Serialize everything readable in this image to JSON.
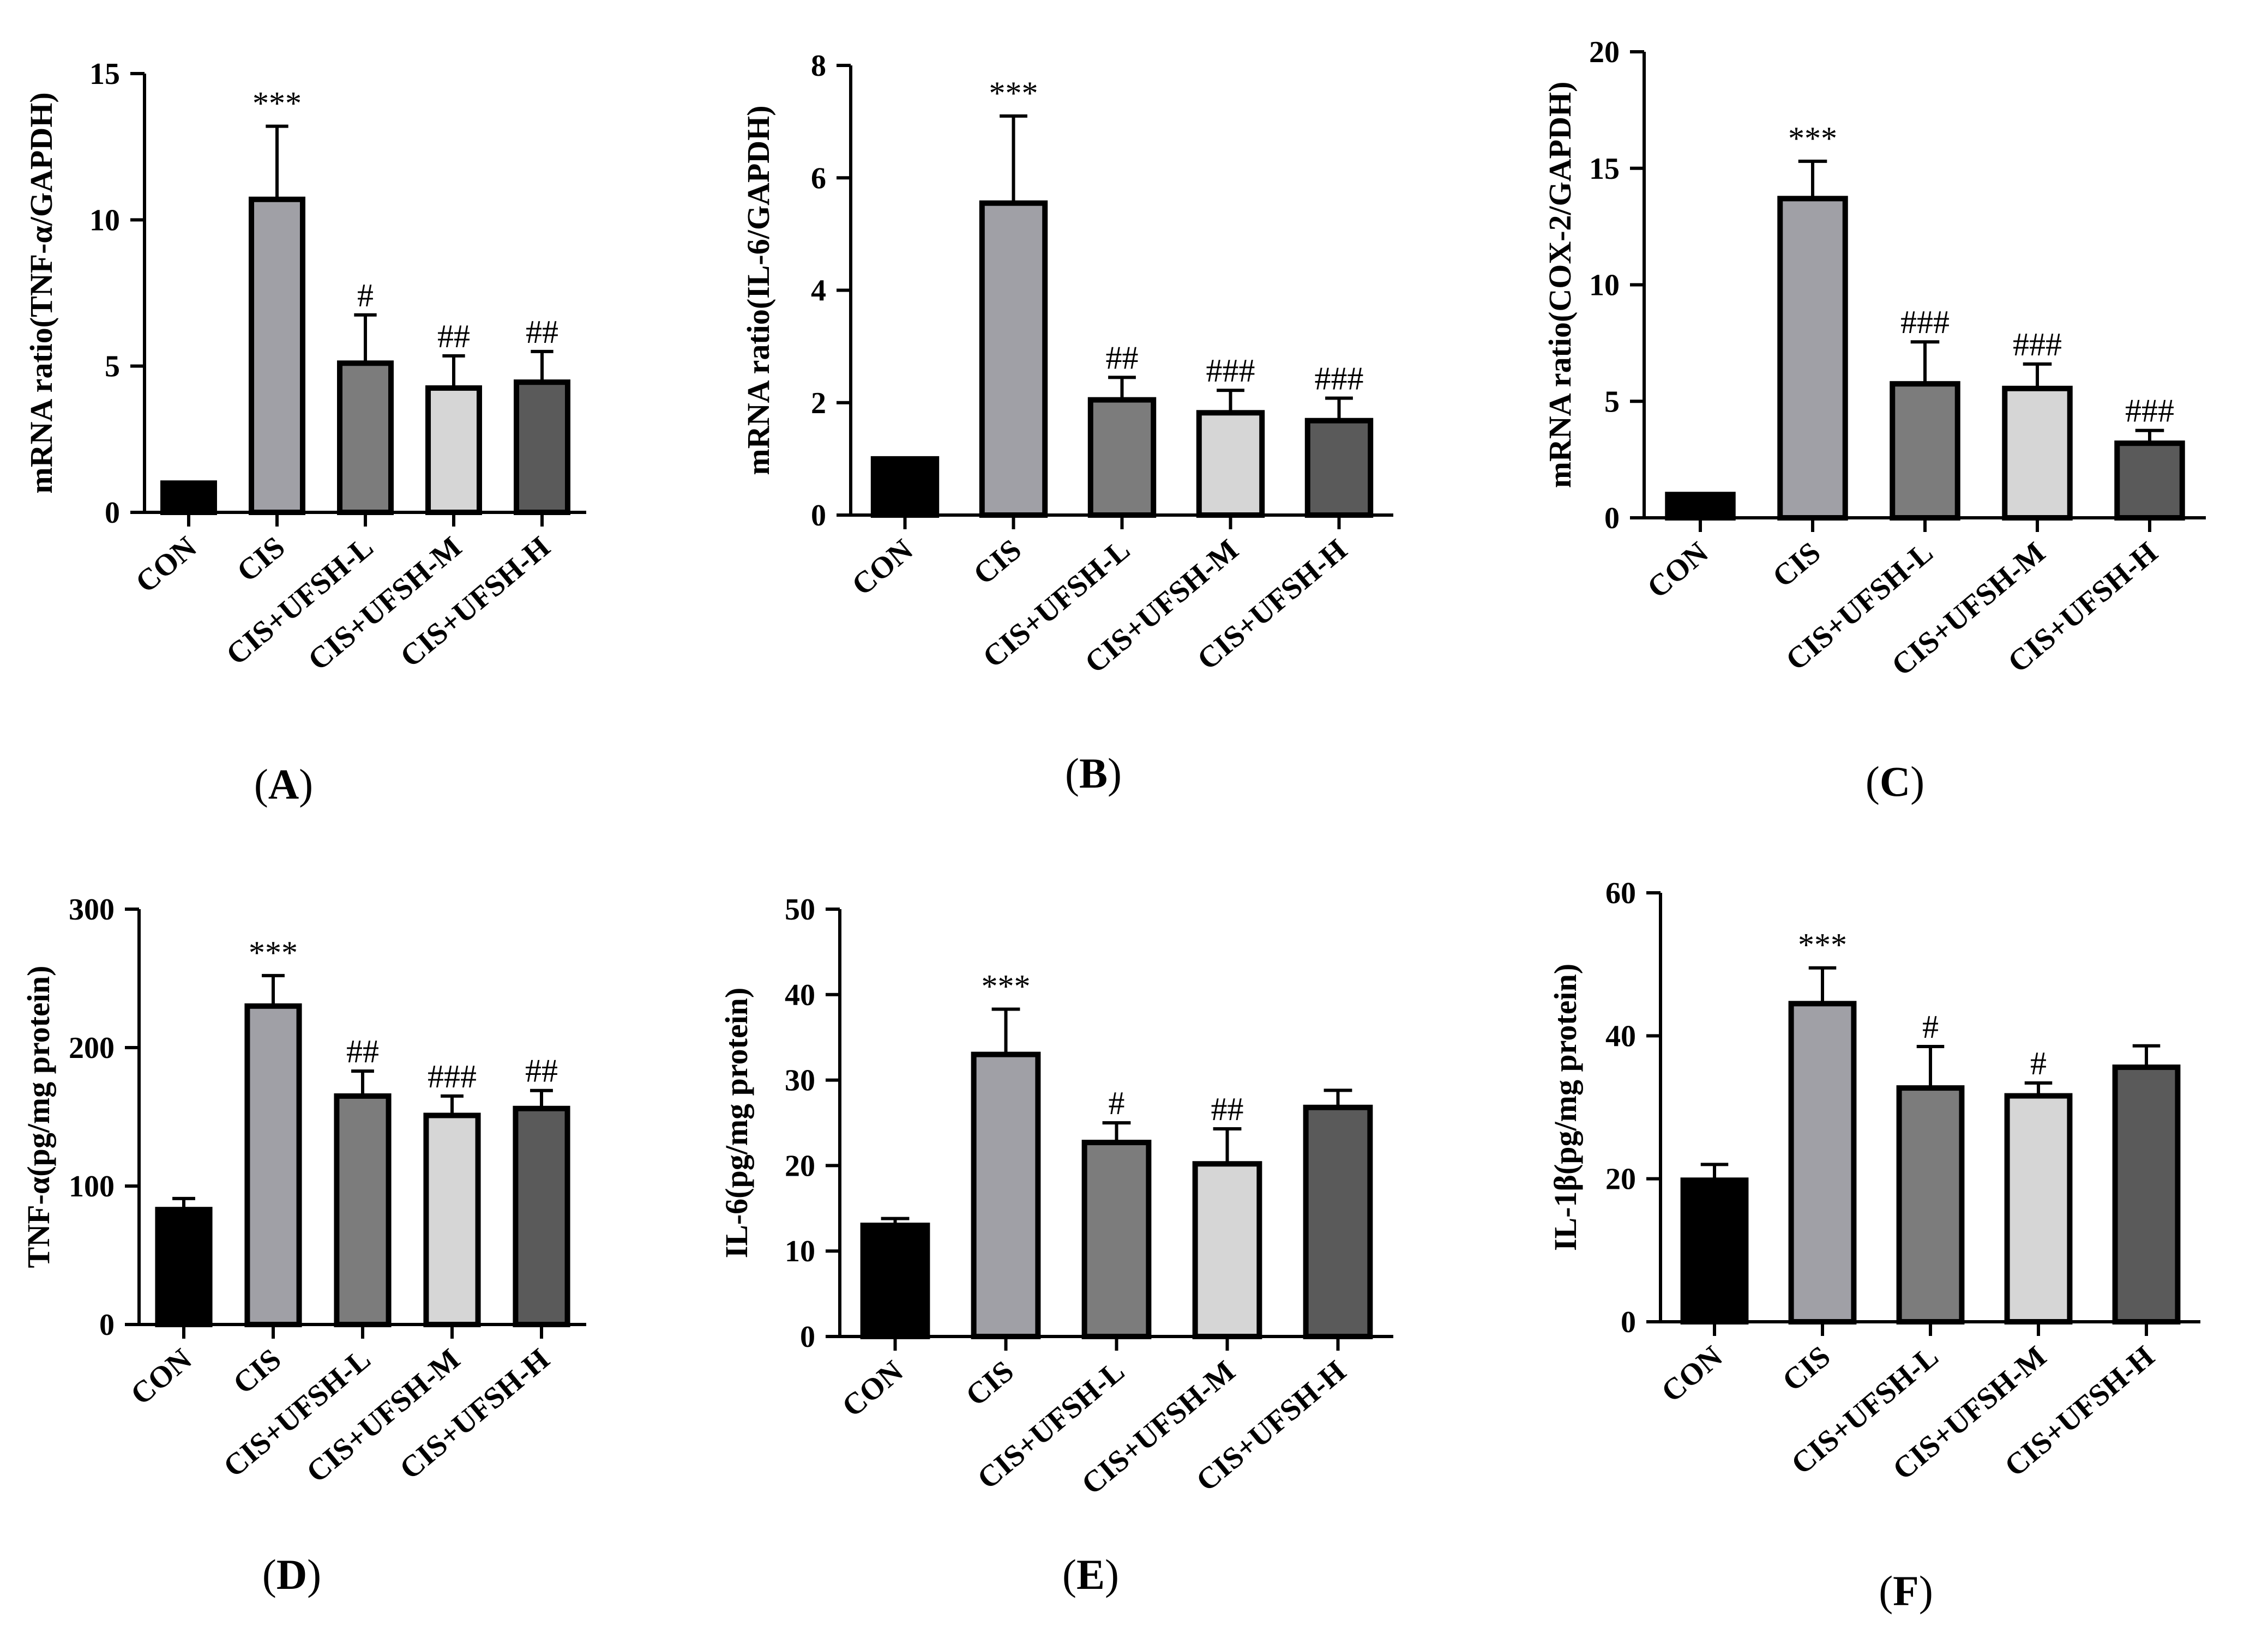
{
  "figure": {
    "colors": [
      "#000000",
      "#a0a0a6",
      "#7c7c7c",
      "#d6d6d6",
      "#5a5a5a"
    ],
    "panel_prefix": "(",
    "panel_suffix": ")"
  },
  "chart_data": [
    {
      "panel": "A",
      "type": "bar",
      "ylabel": "mRNA ratio(TNF-α/GAPDH)",
      "categories": [
        "CON",
        "CIS",
        "CIS+UFSH-L",
        "CIS+UFSH-M",
        "CIS+UFSH-H"
      ],
      "values": [
        1.0,
        10.7,
        5.1,
        4.25,
        4.45
      ],
      "errors": [
        0,
        2.5,
        1.65,
        1.1,
        1.05
      ],
      "significance": [
        "",
        "***",
        "#",
        "##",
        "##"
      ],
      "ylim": [
        0,
        15
      ],
      "yticks": [
        0,
        5,
        10,
        15
      ]
    },
    {
      "panel": "B",
      "type": "bar",
      "ylabel": "mRNA ratio(IL-6/GAPDH)",
      "categories": [
        "CON",
        "CIS",
        "CIS+UFSH-L",
        "CIS+UFSH-M",
        "CIS+UFSH-H"
      ],
      "values": [
        1.0,
        5.55,
        2.05,
        1.82,
        1.68
      ],
      "errors": [
        0,
        1.55,
        0.4,
        0.4,
        0.4
      ],
      "significance": [
        "",
        "***",
        "##",
        "###",
        "###"
      ],
      "ylim": [
        0,
        8
      ],
      "yticks": [
        0,
        2,
        4,
        6,
        8
      ]
    },
    {
      "panel": "C",
      "type": "bar",
      "ylabel": "mRNA ratio(COX-2/GAPDH)",
      "categories": [
        "CON",
        "CIS",
        "CIS+UFSH-L",
        "CIS+UFSH-M",
        "CIS+UFSH-H"
      ],
      "values": [
        1.0,
        13.7,
        5.75,
        5.55,
        3.2
      ],
      "errors": [
        0,
        1.6,
        1.8,
        1.05,
        0.55
      ],
      "significance": [
        "",
        "***",
        "###",
        "###",
        "###"
      ],
      "ylim": [
        0,
        20
      ],
      "yticks": [
        0,
        5,
        10,
        15,
        20
      ]
    },
    {
      "panel": "D",
      "type": "bar",
      "ylabel": "TNF-α(pg/mg protein)",
      "categories": [
        "CON",
        "CIS",
        "CIS+UFSH-L",
        "CIS+UFSH-M",
        "CIS+UFSH-H"
      ],
      "values": [
        83,
        230,
        165,
        151,
        156
      ],
      "errors": [
        8,
        22,
        18,
        14,
        13
      ],
      "significance": [
        "",
        "***",
        "##",
        "###",
        "##"
      ],
      "ylim": [
        0,
        300
      ],
      "yticks": [
        0,
        100,
        200,
        300
      ]
    },
    {
      "panel": "E",
      "type": "bar",
      "ylabel": "IL-6(pg/mg protein)",
      "categories": [
        "CON",
        "CIS",
        "CIS+UFSH-L",
        "CIS+UFSH-M",
        "CIS+UFSH-H"
      ],
      "values": [
        13,
        33,
        22.7,
        20.2,
        26.8
      ],
      "errors": [
        0.8,
        5.3,
        2.3,
        4.1,
        2.0
      ],
      "significance": [
        "",
        "***",
        "#",
        "##",
        ""
      ],
      "ylim": [
        0,
        50
      ],
      "yticks": [
        0,
        10,
        20,
        30,
        40,
        50
      ]
    },
    {
      "panel": "F",
      "type": "bar",
      "ylabel": "IL-1β(pg/mg protein)",
      "categories": [
        "CON",
        "CIS",
        "CIS+UFSH-L",
        "CIS+UFSH-M",
        "CIS+UFSH-H"
      ],
      "values": [
        19.8,
        44.5,
        32.7,
        31.6,
        35.6
      ],
      "errors": [
        2.2,
        5.0,
        5.8,
        1.8,
        3.0
      ],
      "significance": [
        "",
        "***",
        "#",
        "#",
        ""
      ],
      "ylim": [
        0,
        60
      ],
      "yticks": [
        0,
        20,
        40,
        60
      ]
    }
  ]
}
